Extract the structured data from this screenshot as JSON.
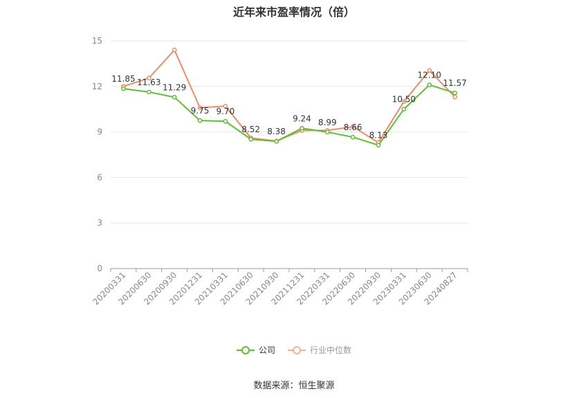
{
  "chart_data": {
    "type": "line",
    "title": "近年来市盈率情况（倍）",
    "categories": [
      "20200331",
      "20200630",
      "20200930",
      "20201231",
      "20210331",
      "20210630",
      "20210930",
      "20211231",
      "20220331",
      "20220630",
      "20220930",
      "20230331",
      "20230630",
      "20240827"
    ],
    "series": [
      {
        "name": "公司",
        "color": "#5ac230",
        "values": [
          11.85,
          11.63,
          11.29,
          9.75,
          9.7,
          8.52,
          8.38,
          9.24,
          8.99,
          8.66,
          8.13,
          10.5,
          12.1,
          11.57
        ],
        "labels": [
          "11.85",
          "11.63",
          "11.29",
          "9.75",
          "9.70",
          "8.52",
          "8.38",
          "9.24",
          "8.99",
          "8.66",
          "8.13",
          "10.50",
          "12.10",
          "11.57"
        ]
      },
      {
        "name": "行业中位数",
        "color": "#f08c64",
        "values": [
          12.0,
          12.55,
          14.4,
          10.6,
          10.7,
          8.6,
          8.4,
          9.1,
          9.1,
          9.35,
          8.3,
          11.0,
          13.05,
          11.3
        ]
      }
    ],
    "ylim": [
      0,
      15
    ],
    "yticks": [
      0,
      3,
      6,
      9,
      12,
      15
    ],
    "grid": true,
    "legend_position": "bottom-center"
  },
  "source_text": "数据来源：恒生聚源"
}
